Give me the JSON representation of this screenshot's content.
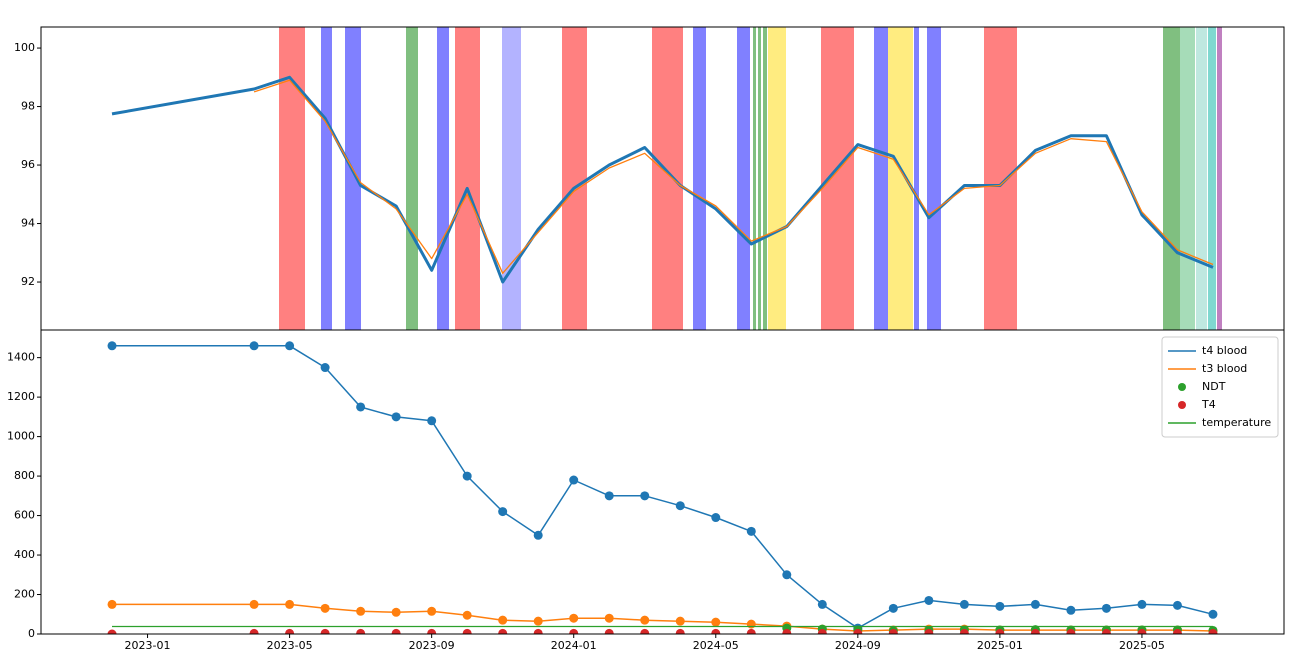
{
  "chart_data": [
    {
      "type": "line",
      "x": [
        "2022-12",
        "2023-04",
        "2023-05",
        "2023-06",
        "2023-07",
        "2023-08",
        "2023-09",
        "2023-10",
        "2023-11",
        "2023-12",
        "2024-01",
        "2024-02",
        "2024-03",
        "2024-04",
        "2024-05",
        "2024-06",
        "2024-07",
        "2024-08",
        "2024-09",
        "2024-10",
        "2024-11",
        "2024-12",
        "2025-01",
        "2025-02",
        "2025-03",
        "2025-04",
        "2025-05",
        "2025-06",
        "2025-07"
      ],
      "xlim": [
        "2022-10",
        "2025-09"
      ],
      "series": [
        {
          "color": "#1f77b4",
          "linewidth": 3,
          "values": [
            97.75,
            98.6,
            99.0,
            97.6,
            95.3,
            94.6,
            92.4,
            95.2,
            92.0,
            93.8,
            95.2,
            96.0,
            96.6,
            95.3,
            94.5,
            93.3,
            93.9,
            95.3,
            96.7,
            96.3,
            94.2,
            95.3,
            95.3,
            96.5,
            97.0,
            97.0,
            94.3,
            93.0,
            92.5
          ]
        },
        {
          "color": "#ff7f0e",
          "linewidth": 1.3,
          "values": [
            null,
            98.5,
            98.9,
            97.5,
            95.4,
            94.5,
            92.8,
            95.0,
            92.3,
            93.7,
            95.1,
            95.9,
            96.4,
            95.3,
            94.6,
            93.4,
            93.9,
            95.2,
            96.6,
            96.2,
            94.3,
            95.2,
            95.3,
            96.4,
            96.9,
            96.8,
            94.4,
            93.1,
            92.6
          ]
        }
      ],
      "ylim": [
        90.36,
        100.72
      ],
      "yticks": [
        92,
        94,
        96,
        98,
        100
      ]
    },
    {
      "type": "line",
      "x": [
        "2022-12",
        "2023-04",
        "2023-05",
        "2023-06",
        "2023-07",
        "2023-08",
        "2023-09",
        "2023-10",
        "2023-11",
        "2023-12",
        "2024-01",
        "2024-02",
        "2024-03",
        "2024-04",
        "2024-05",
        "2024-06",
        "2024-07",
        "2024-08",
        "2024-09",
        "2024-10",
        "2024-11",
        "2024-12",
        "2025-01",
        "2025-02",
        "2025-03",
        "2025-04",
        "2025-05",
        "2025-06",
        "2025-07"
      ],
      "xlim": [
        "2022-10",
        "2025-09"
      ],
      "xticks": [
        "2023-01",
        "2023-05",
        "2023-09",
        "2024-01",
        "2024-05",
        "2024-09",
        "2025-01",
        "2025-05"
      ],
      "series": [
        {
          "name": "t4 blood",
          "color": "#1f77b4",
          "mode": "line+markers",
          "linewidth": 1.5,
          "values": [
            1460,
            1460,
            1460,
            1350,
            1150,
            1100,
            1080,
            800,
            620,
            500,
            780,
            700,
            700,
            650,
            590,
            520,
            300,
            150,
            30,
            130,
            170,
            150,
            140,
            150,
            120,
            130,
            150,
            145,
            100
          ]
        },
        {
          "name": "t3 blood",
          "color": "#ff7f0e",
          "mode": "line+markers",
          "linewidth": 1.5,
          "values": [
            150,
            150,
            150,
            130,
            115,
            110,
            115,
            95,
            70,
            65,
            80,
            80,
            70,
            65,
            60,
            50,
            40,
            25,
            15,
            20,
            25,
            25,
            20,
            20,
            20,
            20,
            20,
            20,
            15
          ]
        },
        {
          "name": "NDT",
          "color": "#2ca02c",
          "mode": "markers",
          "values": [
            null,
            null,
            null,
            null,
            null,
            null,
            null,
            null,
            null,
            null,
            null,
            null,
            null,
            null,
            null,
            null,
            30,
            25,
            20,
            15,
            18,
            20,
            20,
            22,
            20,
            20,
            20,
            20,
            18
          ]
        },
        {
          "name": "T4",
          "color": "#d62728",
          "mode": "markers",
          "values": [
            0,
            3,
            3,
            3,
            3,
            3,
            3,
            3,
            3,
            3,
            3,
            3,
            3,
            3,
            3,
            3,
            3,
            3,
            3,
            3,
            3,
            3,
            3,
            3,
            3,
            3,
            3,
            3,
            3
          ]
        },
        {
          "name": "temperature",
          "color": "#2ca02c",
          "mode": "line",
          "linewidth": 1.3,
          "values": [
            38,
            38,
            38,
            38,
            38,
            38,
            38,
            38,
            38,
            38,
            38,
            38,
            38,
            38,
            38,
            38,
            38,
            38,
            38,
            38,
            38,
            38,
            38,
            38,
            38,
            38,
            38,
            38,
            38
          ]
        }
      ],
      "ylim": [
        0,
        1540
      ],
      "yticks": [
        0,
        200,
        400,
        600,
        800,
        1000,
        1200,
        1400
      ],
      "legend": "upper right"
    }
  ]
}
